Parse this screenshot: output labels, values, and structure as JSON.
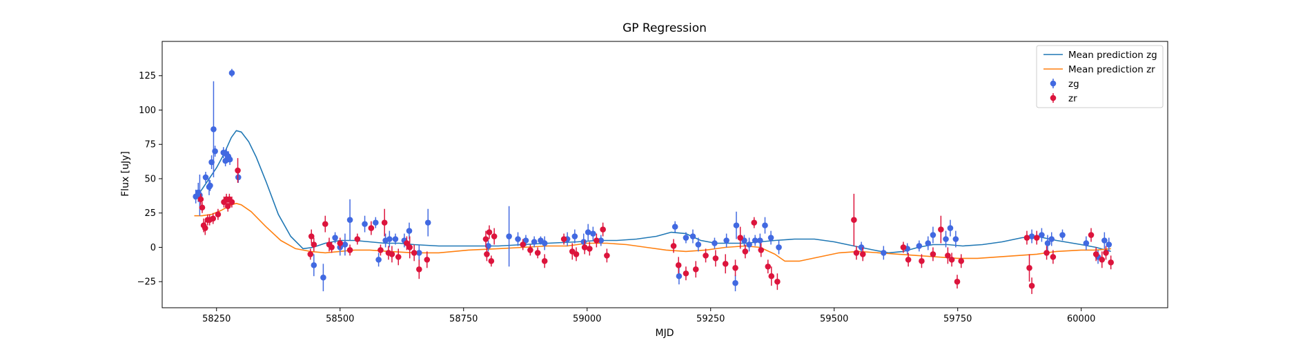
{
  "chart_data": {
    "type": "scatter",
    "title": "GP Regression",
    "xlabel": "MJD",
    "ylabel": "Flux [uJy]",
    "xlim": [
      58140,
      60175
    ],
    "ylim": [
      -44,
      150
    ],
    "xticks": [
      58250,
      58500,
      58750,
      59000,
      59250,
      59500,
      59750,
      60000
    ],
    "yticks": [
      -25,
      0,
      25,
      50,
      75,
      100,
      125
    ],
    "legend_position": "top-right",
    "grid": false,
    "lines": [
      {
        "name": "Mean prediction zg",
        "color": "#1f77b4",
        "x": [
          58205,
          58220,
          58235,
          58250,
          58265,
          58280,
          58290,
          58300,
          58315,
          58330,
          58350,
          58375,
          58400,
          58425,
          58445,
          58470,
          58500,
          58530,
          58560,
          58590,
          58620,
          58650,
          58700,
          58760,
          58820,
          58870,
          58920,
          58980,
          59020,
          59060,
          59100,
          59140,
          59170,
          59200,
          59230,
          59260,
          59290,
          59320,
          59350,
          59380,
          59420,
          59460,
          59500,
          59540,
          59580,
          59610,
          59640,
          59670,
          59700,
          59730,
          59760,
          59800,
          59840,
          59880,
          59910,
          59950,
          60000,
          60030,
          60050,
          60060
        ],
        "y": [
          35,
          42,
          50,
          58,
          68,
          80,
          85,
          84,
          77,
          66,
          48,
          24,
          8,
          -1,
          0,
          3,
          5,
          5,
          4,
          3,
          3,
          2,
          1,
          1,
          1,
          2,
          3,
          4,
          5,
          5,
          6,
          8,
          11,
          10,
          5,
          3,
          3,
          3,
          4,
          5,
          6,
          6,
          4,
          1,
          -2,
          -4,
          -3,
          0,
          2,
          2,
          1,
          2,
          4,
          7,
          8,
          5,
          2,
          0,
          -2,
          -3
        ]
      },
      {
        "name": "Mean prediction zr",
        "color": "#ff7f0e",
        "x": [
          58205,
          58220,
          58240,
          58260,
          58280,
          58290,
          58300,
          58320,
          58350,
          58380,
          58410,
          58440,
          58470,
          58500,
          58530,
          58560,
          58600,
          58650,
          58700,
          58760,
          58820,
          58870,
          58920,
          58960,
          59000,
          59040,
          59080,
          59120,
          59160,
          59200,
          59240,
          59280,
          59320,
          59350,
          59380,
          59400,
          59430,
          59470,
          59510,
          59550,
          59590,
          59630,
          59670,
          59710,
          59750,
          59790,
          59830,
          59870,
          59910,
          59950,
          60000,
          60030,
          60060
        ],
        "y": [
          23,
          23,
          24,
          27,
          31,
          32,
          31,
          26,
          15,
          5,
          -1,
          -3,
          -4,
          -3,
          -2,
          -2,
          -3,
          -4,
          -4,
          -2,
          -1,
          0,
          1,
          1,
          3,
          3,
          2,
          0,
          -2,
          -3,
          -2,
          0,
          1,
          0,
          -5,
          -10,
          -10,
          -7,
          -4,
          -3,
          -4,
          -5,
          -6,
          -7,
          -8,
          -8,
          -7,
          -6,
          -5,
          -3,
          -2,
          -2,
          -1
        ]
      }
    ],
    "series": [
      {
        "name": "zg",
        "color": "#4169e1",
        "points": [
          [
            58208,
            37,
            5
          ],
          [
            58213,
            40,
            7
          ],
          [
            58216,
            38,
            15
          ],
          [
            58228,
            51,
            4
          ],
          [
            58235,
            44,
            6
          ],
          [
            58237,
            45,
            4
          ],
          [
            58240,
            62,
            5
          ],
          [
            58244,
            86,
            35
          ],
          [
            58247,
            70,
            4
          ],
          [
            58264,
            69,
            4
          ],
          [
            58268,
            63,
            4
          ],
          [
            58270,
            68,
            4
          ],
          [
            58274,
            66,
            4
          ],
          [
            58277,
            64,
            4
          ],
          [
            58281,
            127,
            3
          ],
          [
            58294,
            51,
            4
          ],
          [
            58447,
            -13,
            8
          ],
          [
            58466,
            -22,
            10
          ],
          [
            58490,
            7,
            4
          ],
          [
            58500,
            0,
            6
          ],
          [
            58510,
            2,
            8
          ],
          [
            58520,
            20,
            15
          ],
          [
            58550,
            17,
            6
          ],
          [
            58572,
            18,
            4
          ],
          [
            58578,
            -9,
            5
          ],
          [
            58592,
            5,
            5
          ],
          [
            58600,
            6,
            6
          ],
          [
            58612,
            6,
            4
          ],
          [
            58630,
            5,
            5
          ],
          [
            58640,
            12,
            6
          ],
          [
            58660,
            -4,
            6
          ],
          [
            58678,
            18,
            10
          ],
          [
            58800,
            1,
            4
          ],
          [
            58842,
            8,
            22
          ],
          [
            58860,
            6,
            5
          ],
          [
            58876,
            5,
            4
          ],
          [
            58893,
            4,
            4
          ],
          [
            58906,
            5,
            3
          ],
          [
            58914,
            3,
            5
          ],
          [
            58960,
            6,
            5
          ],
          [
            58975,
            8,
            5
          ],
          [
            58993,
            4,
            6
          ],
          [
            59002,
            11,
            6
          ],
          [
            59012,
            10,
            5
          ],
          [
            59028,
            5,
            4
          ],
          [
            59178,
            15,
            4
          ],
          [
            59186,
            -21,
            6
          ],
          [
            59200,
            7,
            4
          ],
          [
            59214,
            8,
            5
          ],
          [
            59225,
            2,
            5
          ],
          [
            59258,
            3,
            4
          ],
          [
            59282,
            5,
            5
          ],
          [
            59300,
            -26,
            6
          ],
          [
            59302,
            16,
            10
          ],
          [
            59318,
            5,
            4
          ],
          [
            59328,
            2,
            5
          ],
          [
            59340,
            5,
            4
          ],
          [
            59350,
            5,
            5
          ],
          [
            59360,
            16,
            6
          ],
          [
            59372,
            7,
            5
          ],
          [
            59388,
            0,
            5
          ],
          [
            59555,
            0,
            4
          ],
          [
            59600,
            -4,
            5
          ],
          [
            59648,
            -1,
            4
          ],
          [
            59672,
            1,
            4
          ],
          [
            59690,
            3,
            5
          ],
          [
            59700,
            9,
            6
          ],
          [
            59726,
            6,
            6
          ],
          [
            59735,
            14,
            6
          ],
          [
            59746,
            6,
            6
          ],
          [
            59900,
            8,
            5
          ],
          [
            59920,
            9,
            5
          ],
          [
            59932,
            3,
            6
          ],
          [
            59940,
            6,
            5
          ],
          [
            59962,
            9,
            4
          ],
          [
            60010,
            3,
            5
          ],
          [
            60034,
            -7,
            5
          ],
          [
            60047,
            5,
            6
          ],
          [
            60056,
            2,
            5
          ]
        ]
      },
      {
        "name": "zr",
        "color": "#dc143c",
        "points": [
          [
            58218,
            35,
            4
          ],
          [
            58221,
            29,
            4
          ],
          [
            58224,
            16,
            5
          ],
          [
            58227,
            14,
            5
          ],
          [
            58232,
            20,
            4
          ],
          [
            58236,
            20,
            4
          ],
          [
            58243,
            21,
            4
          ],
          [
            58253,
            24,
            4
          ],
          [
            58265,
            33,
            4
          ],
          [
            58270,
            35,
            4
          ],
          [
            58273,
            30,
            4
          ],
          [
            58276,
            35,
            4
          ],
          [
            58281,
            33,
            4
          ],
          [
            58293,
            56,
            9
          ],
          [
            58440,
            -5,
            4
          ],
          [
            58442,
            8,
            5
          ],
          [
            58447,
            2,
            5
          ],
          [
            58470,
            17,
            6
          ],
          [
            58478,
            2,
            5
          ],
          [
            58483,
            0,
            4
          ],
          [
            58500,
            3,
            4
          ],
          [
            58520,
            -2,
            4
          ],
          [
            58535,
            6,
            4
          ],
          [
            58563,
            14,
            5
          ],
          [
            58582,
            -2,
            4
          ],
          [
            58590,
            18,
            10
          ],
          [
            58598,
            -4,
            5
          ],
          [
            58605,
            -5,
            6
          ],
          [
            58618,
            -7,
            6
          ],
          [
            58635,
            3,
            5
          ],
          [
            58641,
            0,
            8
          ],
          [
            58650,
            -4,
            6
          ],
          [
            58660,
            -16,
            7
          ],
          [
            58676,
            -9,
            6
          ],
          [
            58795,
            6,
            6
          ],
          [
            58797,
            -5,
            5
          ],
          [
            58802,
            11,
            5
          ],
          [
            58806,
            -10,
            4
          ],
          [
            58812,
            8,
            6
          ],
          [
            58870,
            2,
            4
          ],
          [
            58885,
            -2,
            4
          ],
          [
            58900,
            -4,
            4
          ],
          [
            58914,
            -10,
            5
          ],
          [
            58953,
            6,
            4
          ],
          [
            58970,
            -3,
            6
          ],
          [
            58978,
            -5,
            5
          ],
          [
            58995,
            0,
            5
          ],
          [
            59005,
            -1,
            5
          ],
          [
            59019,
            5,
            5
          ],
          [
            59032,
            13,
            5
          ],
          [
            59040,
            -6,
            5
          ],
          [
            59175,
            1,
            5
          ],
          [
            59185,
            -13,
            6
          ],
          [
            59200,
            -19,
            5
          ],
          [
            59220,
            -16,
            6
          ],
          [
            59240,
            -6,
            5
          ],
          [
            59260,
            -8,
            6
          ],
          [
            59280,
            -12,
            7
          ],
          [
            59300,
            -15,
            6
          ],
          [
            59310,
            7,
            8
          ],
          [
            59320,
            -3,
            5
          ],
          [
            59338,
            18,
            4
          ],
          [
            59352,
            -2,
            5
          ],
          [
            59366,
            -14,
            5
          ],
          [
            59373,
            -21,
            7
          ],
          [
            59385,
            -25,
            6
          ],
          [
            59540,
            20,
            19
          ],
          [
            59545,
            -4,
            5
          ],
          [
            59558,
            -5,
            5
          ],
          [
            59640,
            0,
            4
          ],
          [
            59650,
            -9,
            5
          ],
          [
            59677,
            -10,
            5
          ],
          [
            59700,
            -5,
            5
          ],
          [
            59716,
            13,
            10
          ],
          [
            59730,
            -6,
            6
          ],
          [
            59738,
            -9,
            5
          ],
          [
            59749,
            -25,
            5
          ],
          [
            59757,
            -10,
            5
          ],
          [
            59890,
            7,
            5
          ],
          [
            59895,
            -15,
            10
          ],
          [
            59900,
            -28,
            6
          ],
          [
            59910,
            7,
            5
          ],
          [
            59930,
            -4,
            5
          ],
          [
            59943,
            -7,
            5
          ],
          [
            60020,
            9,
            5
          ],
          [
            60030,
            -5,
            5
          ],
          [
            60042,
            -9,
            6
          ],
          [
            60050,
            -4,
            5
          ],
          [
            60060,
            -11,
            5
          ]
        ]
      }
    ]
  }
}
